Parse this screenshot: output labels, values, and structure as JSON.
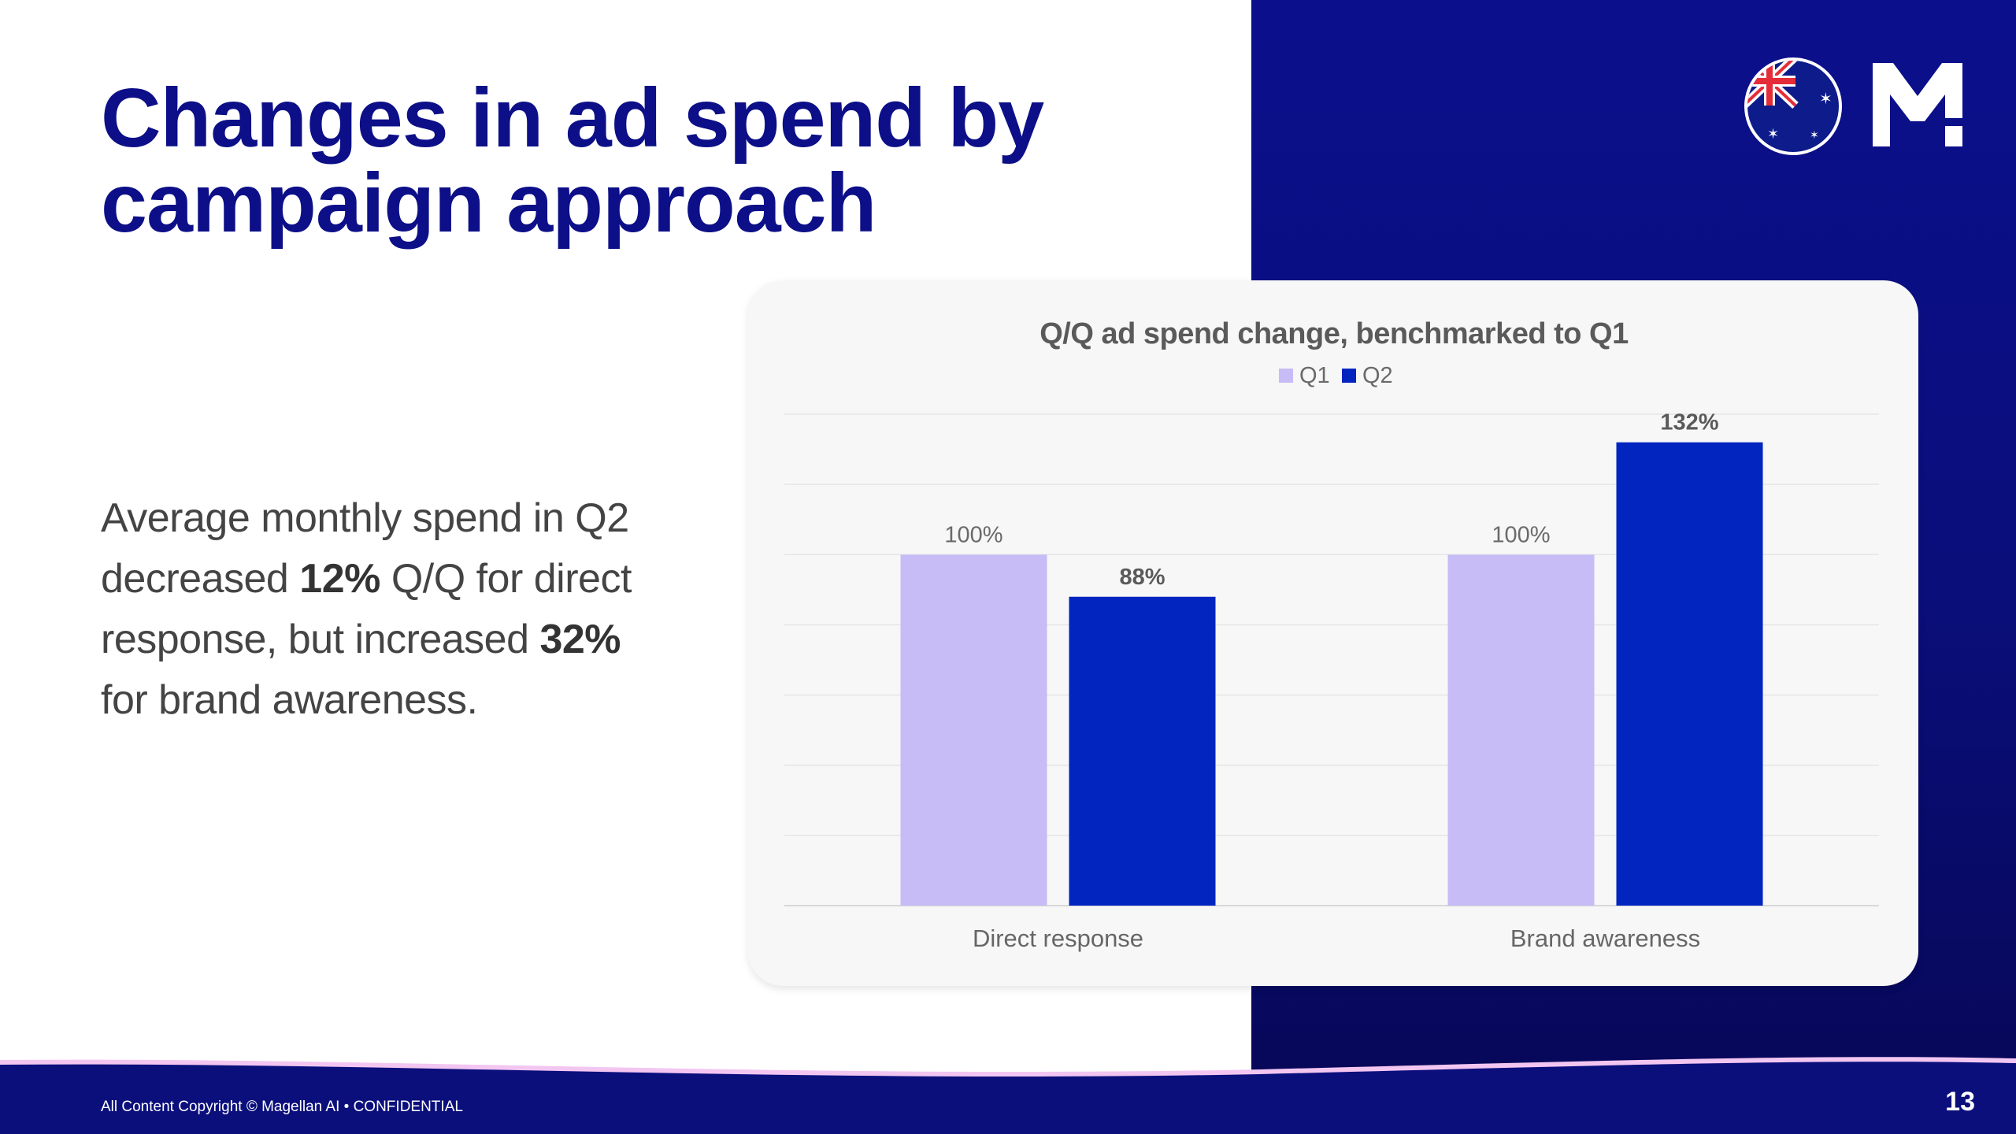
{
  "slide": {
    "title_line1": "Changes in ad spend by",
    "title_line2": "campaign approach",
    "body": {
      "line1": "Average monthly spend in Q2",
      "line2_pre": "decreased ",
      "line2_bold": "12%",
      "line2_post": " Q/Q for direct",
      "line3_pre": "response, but increased ",
      "line3_bold": "32%",
      "line4": "for brand awareness."
    },
    "footer": "All Content Copyright © Magellan AI • CONFIDENTIAL",
    "page_number": "13"
  },
  "logos": {
    "flag_icon": "australia-flag-icon",
    "brand_icon": "magellan-m-logo-icon"
  },
  "colors": {
    "navy": "#0c0f87",
    "q1": "#c7bcf5",
    "q2": "#0225c0",
    "wave": "#f3c6f2"
  },
  "chart_data": {
    "type": "bar",
    "title": "Q/Q ad spend change, benchmarked to Q1",
    "categories": [
      "Direct response",
      "Brand awareness"
    ],
    "series": [
      {
        "name": "Q1",
        "values": [
          100,
          100
        ],
        "labels": [
          "100%",
          "100%"
        ]
      },
      {
        "name": "Q2",
        "values": [
          88,
          132
        ],
        "labels": [
          "88%",
          "132%"
        ]
      }
    ],
    "ylim": [
      0,
      140
    ],
    "gridlines": [
      0,
      20,
      40,
      60,
      80,
      100,
      120,
      140
    ],
    "grid": true,
    "legend": "top-center"
  }
}
